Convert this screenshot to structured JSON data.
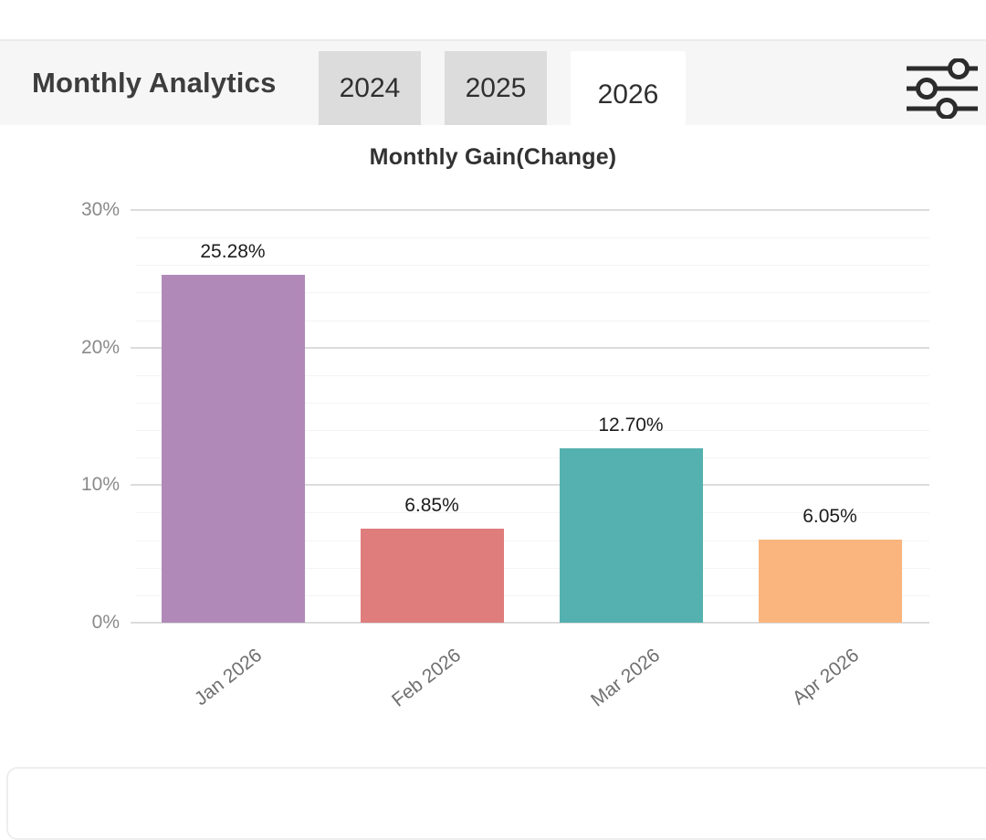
{
  "header": {
    "title": "Monthly Analytics",
    "tabs": [
      {
        "label": "2024",
        "active": false
      },
      {
        "label": "2025",
        "active": false
      },
      {
        "label": "2026",
        "active": true
      }
    ],
    "filter_icon": "sliders-icon"
  },
  "chart_data": {
    "type": "bar",
    "title": "Monthly Gain(Change)",
    "categories": [
      "Jan 2026",
      "Feb 2026",
      "Mar 2026",
      "Apr 2026"
    ],
    "values": [
      25.28,
      6.85,
      12.7,
      6.05
    ],
    "value_labels": [
      "25.28%",
      "6.85%",
      "12.70%",
      "6.05%"
    ],
    "bar_colors": [
      "#b189b9",
      "#df7d7d",
      "#54b1af",
      "#fab57e"
    ],
    "y_ticks": [
      {
        "value": 30,
        "label": "30%"
      },
      {
        "value": 20,
        "label": "20%"
      },
      {
        "value": 10,
        "label": "10%"
      },
      {
        "value": 0,
        "label": "0%"
      }
    ],
    "ylim": [
      0,
      30
    ],
    "minor_grid_step": 2,
    "grid": "horizontal",
    "legend": "none",
    "x_tick_rotation_deg": -38,
    "xlabel": "",
    "ylabel": ""
  },
  "colors": {
    "header_bg": "#f6f6f6",
    "tab_bg": "#dcdcdc",
    "active_tab_bg": "#ffffff",
    "grid_major": "#dcdcdc",
    "grid_minor": "#f4f4f4",
    "axis_text": "#8a8a8a",
    "x_label_text": "#6f6f6f",
    "icon_stroke": "#2c2c2c"
  }
}
